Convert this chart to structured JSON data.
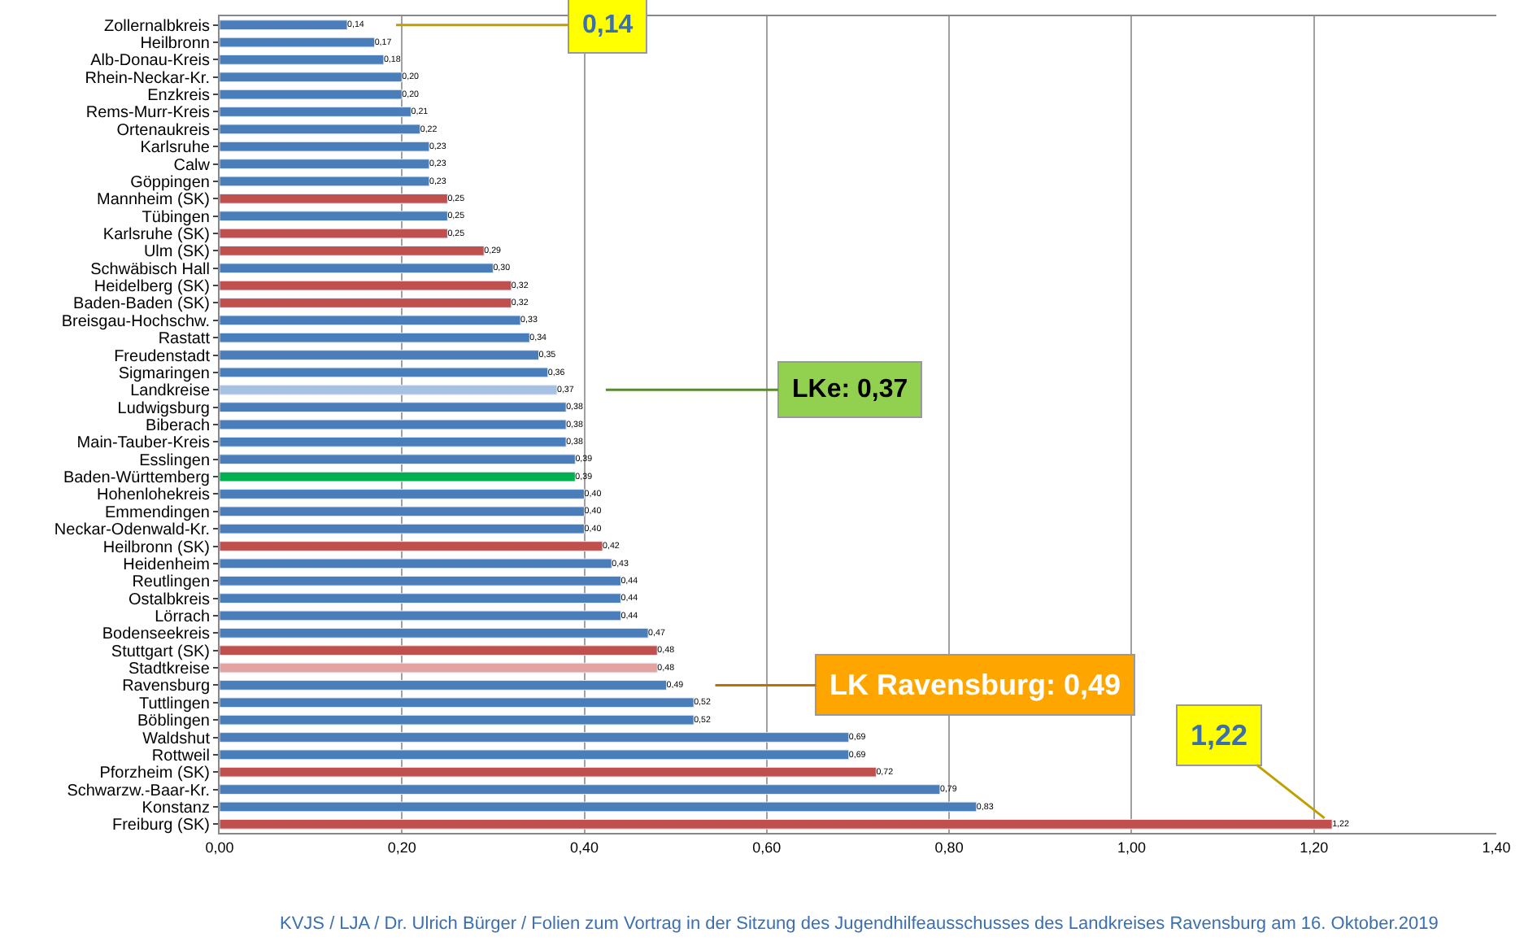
{
  "chart_data": {
    "type": "bar",
    "orientation": "horizontal",
    "categories": [
      "Zollernalbkreis",
      "Heilbronn",
      "Alb-Donau-Kreis",
      "Rhein-Neckar-Kr.",
      "Enzkreis",
      "Rems-Murr-Kreis",
      "Ortenaukreis",
      "Karlsruhe",
      "Calw",
      "Göppingen",
      "Mannheim (SK)",
      "Tübingen",
      "Karlsruhe (SK)",
      "Ulm (SK)",
      "Schwäbisch Hall",
      "Heidelberg (SK)",
      "Baden-Baden (SK)",
      "Breisgau-Hochschw.",
      "Rastatt",
      "Freudenstadt",
      "Sigmaringen",
      "Landkreise",
      "Ludwigsburg",
      "Biberach",
      "Main-Tauber-Kreis",
      "Esslingen",
      "Baden-Württemberg",
      "Hohenlohekreis",
      "Emmendingen",
      "Neckar-Odenwald-Kr.",
      "Heilbronn (SK)",
      "Heidenheim",
      "Reutlingen",
      "Ostalbkreis",
      "Lörrach",
      "Bodenseekreis",
      "Stuttgart (SK)",
      "Stadtkreise",
      "Ravensburg",
      "Tuttlingen",
      "Böblingen",
      "Waldshut",
      "Rottweil",
      "Pforzheim (SK)",
      "Schwarzw.-Baar-Kr.",
      "Konstanz",
      "Freiburg (SK)"
    ],
    "values": [
      0.14,
      0.17,
      0.18,
      0.2,
      0.2,
      0.21,
      0.22,
      0.23,
      0.23,
      0.23,
      0.25,
      0.25,
      0.25,
      0.29,
      0.3,
      0.32,
      0.32,
      0.33,
      0.34,
      0.35,
      0.36,
      0.37,
      0.38,
      0.38,
      0.38,
      0.39,
      0.39,
      0.4,
      0.4,
      0.4,
      0.42,
      0.43,
      0.44,
      0.44,
      0.44,
      0.47,
      0.48,
      0.48,
      0.49,
      0.52,
      0.52,
      0.69,
      0.69,
      0.72,
      0.79,
      0.83,
      1.22
    ],
    "value_labels": [
      "0,14",
      "0,17",
      "0,18",
      "0,20",
      "0,20",
      "0,21",
      "0,22",
      "0,23",
      "0,23",
      "0,23",
      "0,25",
      "0,25",
      "0,25",
      "0,29",
      "0,30",
      "0,32",
      "0,32",
      "0,33",
      "0,34",
      "0,35",
      "0,36",
      "0,37",
      "0,38",
      "0,38",
      "0,38",
      "0,39",
      "0,39",
      "0,40",
      "0,40",
      "0,40",
      "0,42",
      "0,43",
      "0,44",
      "0,44",
      "0,44",
      "0,47",
      "0,48",
      "0,48",
      "0,49",
      "0,52",
      "0,52",
      "0,69",
      "0,69",
      "0,72",
      "0,79",
      "0,83",
      "1,22"
    ],
    "colors": [
      "#4a7ebb",
      "#4a7ebb",
      "#4a7ebb",
      "#4a7ebb",
      "#4a7ebb",
      "#4a7ebb",
      "#4a7ebb",
      "#4a7ebb",
      "#4a7ebb",
      "#4a7ebb",
      "#c0504d",
      "#4a7ebb",
      "#c0504d",
      "#c0504d",
      "#4a7ebb",
      "#c0504d",
      "#c0504d",
      "#4a7ebb",
      "#4a7ebb",
      "#4a7ebb",
      "#4a7ebb",
      "#a7c1e3",
      "#4a7ebb",
      "#4a7ebb",
      "#4a7ebb",
      "#4a7ebb",
      "#00b050",
      "#4a7ebb",
      "#4a7ebb",
      "#4a7ebb",
      "#c0504d",
      "#4a7ebb",
      "#4a7ebb",
      "#4a7ebb",
      "#4a7ebb",
      "#4a7ebb",
      "#c0504d",
      "#e3a3a1",
      "#4a7ebb",
      "#4a7ebb",
      "#4a7ebb",
      "#4a7ebb",
      "#4a7ebb",
      "#c0504d",
      "#4a7ebb",
      "#4a7ebb",
      "#c0504d"
    ],
    "xlim": [
      0,
      1.4
    ],
    "xticks": [
      {
        "value": 0,
        "label": "0,00"
      },
      {
        "value": 0.2,
        "label": "0,20"
      },
      {
        "value": 0.4,
        "label": "0,40"
      },
      {
        "value": 0.6,
        "label": "0,60"
      },
      {
        "value": 0.8,
        "label": "0,80"
      },
      {
        "value": 1.0,
        "label": "1,00"
      },
      {
        "value": 1.2,
        "label": "1,20"
      },
      {
        "value": 1.4,
        "label": "1,40"
      }
    ],
    "grid": "x",
    "annotations": [
      {
        "text": "0,14",
        "x": 0.14,
        "y": "Zollernalbkreis"
      },
      {
        "text": "LKe: 0,37",
        "x": 0.37,
        "y": "Landkreise"
      },
      {
        "text": "LK Ravensburg: 0,49",
        "x": 0.49,
        "y": "Ravensburg"
      },
      {
        "text": "1,22",
        "x": 1.22,
        "y": "Freiburg (SK)"
      },
      "KVJS / LJA / Dr. Ulrich Bürger / Folien zum Vortrag in der Sitzung des Jugendhilfeausschusses des Landkreises Ravensburg am 16. Oktober.2019"
    ]
  }
}
